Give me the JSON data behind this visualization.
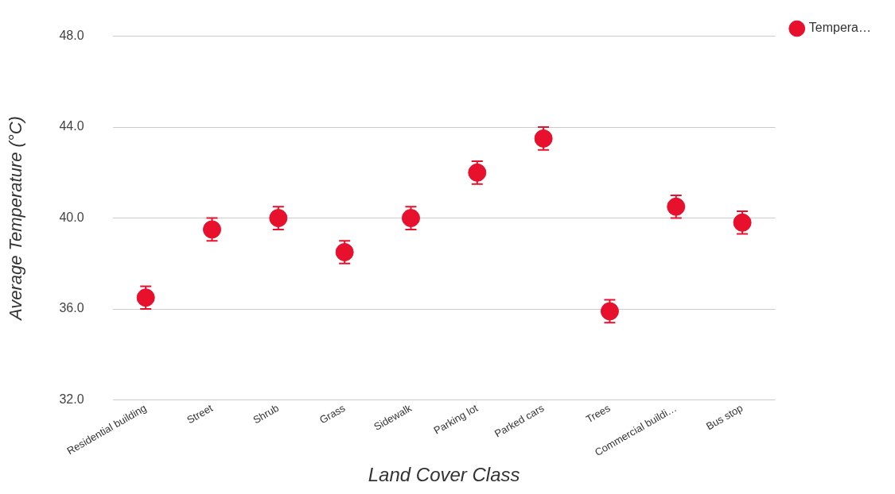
{
  "chart_data": {
    "type": "scatter",
    "xlabel": "Land Cover Class",
    "ylabel": "Average Temperature (°C)",
    "categories": [
      "Residential building",
      "Street",
      "Shrub",
      "Grass",
      "Sidewalk",
      "Parking lot",
      "Parked cars",
      "Trees",
      "Commercial buildi…",
      "Bus stop"
    ],
    "series": [
      {
        "name": "Tempera…",
        "color": "#e8112d",
        "values": [
          36.5,
          39.5,
          40.0,
          38.5,
          40.0,
          42.0,
          43.5,
          35.9,
          40.5,
          39.8
        ],
        "errors": [
          0.5,
          0.5,
          0.5,
          0.5,
          0.5,
          0.5,
          0.5,
          0.5,
          0.5,
          0.5
        ]
      }
    ],
    "ylim": [
      32,
      48
    ],
    "yticks": [
      {
        "value": 32,
        "label": "32.0"
      },
      {
        "value": 36,
        "label": "36.0"
      },
      {
        "value": 40,
        "label": "40.0"
      },
      {
        "value": 44,
        "label": "44.0"
      },
      {
        "value": 48,
        "label": "48.0"
      }
    ],
    "grid": "y",
    "legend": "top right",
    "marker": "circle"
  }
}
